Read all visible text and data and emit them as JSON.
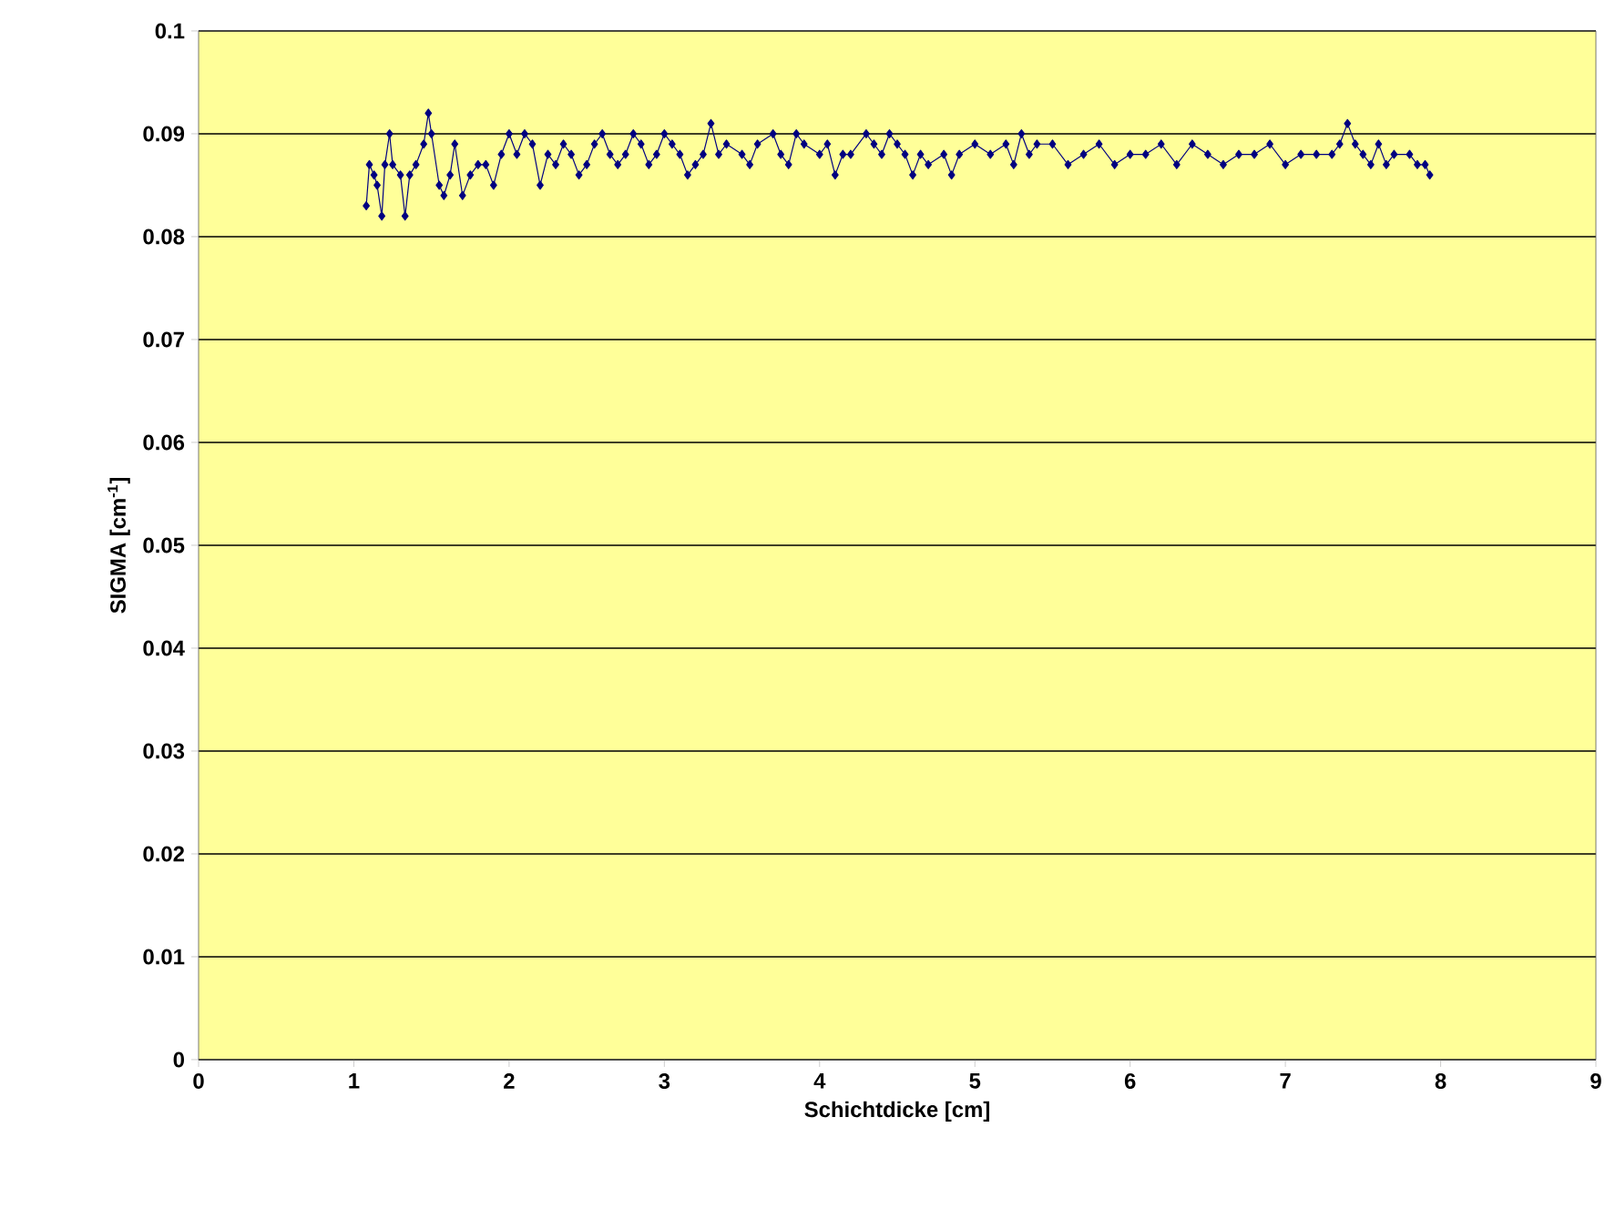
{
  "chart_data": {
    "type": "line",
    "xlabel": "Schichtdicke [cm]",
    "ylabel": "SIGMA [cm$^{-1}$]",
    "x": [
      1.08,
      1.1,
      1.13,
      1.15,
      1.18,
      1.2,
      1.23,
      1.25,
      1.3,
      1.33,
      1.36,
      1.4,
      1.45,
      1.48,
      1.5,
      1.55,
      1.58,
      1.62,
      1.65,
      1.7,
      1.75,
      1.8,
      1.85,
      1.9,
      1.95,
      2.0,
      2.05,
      2.1,
      2.15,
      2.2,
      2.25,
      2.3,
      2.35,
      2.4,
      2.45,
      2.5,
      2.55,
      2.6,
      2.65,
      2.7,
      2.75,
      2.8,
      2.85,
      2.9,
      2.95,
      3.0,
      3.05,
      3.1,
      3.15,
      3.2,
      3.25,
      3.3,
      3.35,
      3.4,
      3.5,
      3.55,
      3.6,
      3.7,
      3.75,
      3.8,
      3.85,
      3.9,
      4.0,
      4.05,
      4.1,
      4.15,
      4.2,
      4.3,
      4.35,
      4.4,
      4.45,
      4.5,
      4.55,
      4.6,
      4.65,
      4.7,
      4.8,
      4.85,
      4.9,
      5.0,
      5.1,
      5.2,
      5.25,
      5.3,
      5.35,
      5.4,
      5.5,
      5.6,
      5.7,
      5.8,
      5.9,
      6.0,
      6.1,
      6.2,
      6.3,
      6.4,
      6.5,
      6.6,
      6.7,
      6.8,
      6.9,
      7.0,
      7.1,
      7.2,
      7.3,
      7.35,
      7.4,
      7.45,
      7.5,
      7.55,
      7.6,
      7.65,
      7.7,
      7.8,
      7.85,
      7.9,
      7.93
    ],
    "series": [
      {
        "color": "#000080",
        "values": [
          0.083,
          0.087,
          0.086,
          0.085,
          0.082,
          0.087,
          0.09,
          0.087,
          0.086,
          0.082,
          0.086,
          0.087,
          0.089,
          0.092,
          0.09,
          0.085,
          0.084,
          0.086,
          0.089,
          0.084,
          0.086,
          0.087,
          0.087,
          0.085,
          0.088,
          0.09,
          0.088,
          0.09,
          0.089,
          0.085,
          0.088,
          0.087,
          0.089,
          0.088,
          0.086,
          0.087,
          0.089,
          0.09,
          0.088,
          0.087,
          0.088,
          0.09,
          0.089,
          0.087,
          0.088,
          0.09,
          0.089,
          0.088,
          0.086,
          0.087,
          0.088,
          0.091,
          0.088,
          0.089,
          0.088,
          0.087,
          0.089,
          0.09,
          0.088,
          0.087,
          0.09,
          0.089,
          0.088,
          0.089,
          0.086,
          0.088,
          0.088,
          0.09,
          0.089,
          0.088,
          0.09,
          0.089,
          0.088,
          0.086,
          0.088,
          0.087,
          0.088,
          0.086,
          0.088,
          0.089,
          0.088,
          0.089,
          0.087,
          0.09,
          0.088,
          0.089,
          0.089,
          0.087,
          0.088,
          0.089,
          0.087,
          0.088,
          0.088,
          0.089,
          0.087,
          0.089,
          0.088,
          0.087,
          0.088,
          0.088,
          0.089,
          0.087,
          0.088,
          0.088,
          0.088,
          0.089,
          0.091,
          0.089,
          0.088,
          0.087,
          0.089,
          0.087,
          0.088,
          0.088,
          0.087,
          0.087,
          0.086
        ]
      }
    ],
    "xlim": [
      0,
      9
    ],
    "ylim": [
      0,
      0.1
    ],
    "xticks": [
      0,
      1,
      2,
      3,
      4,
      5,
      6,
      7,
      8,
      9
    ],
    "yticks": [
      0,
      0.01,
      0.02,
      0.03,
      0.04,
      0.05,
      0.06,
      0.07,
      0.08,
      0.09,
      0.1
    ],
    "grid": "y",
    "marker": "diamond",
    "line_style": "solid"
  }
}
